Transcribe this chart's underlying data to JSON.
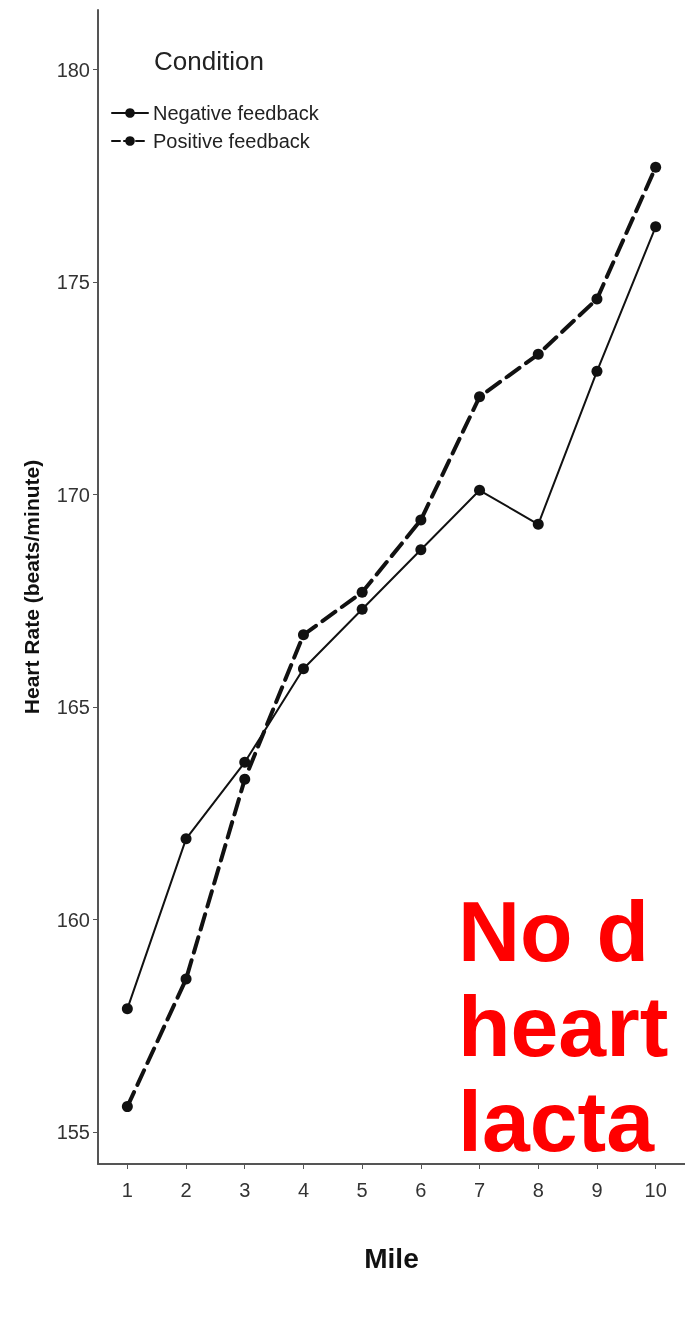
{
  "chart_data": {
    "type": "line",
    "xlabel": "Mile",
    "ylabel": "Heart Rate (beats/minute)",
    "legend_title": "Condition",
    "legend": "top left",
    "marker": "circle",
    "grid": false,
    "categories": [
      "1",
      "2",
      "3",
      "4",
      "5",
      "6",
      "7",
      "8",
      "9",
      "10"
    ],
    "series": [
      {
        "name": "Negative feedback",
        "color": "#111111",
        "line_style": "solid",
        "values": [
          157.9,
          161.9,
          163.7,
          165.9,
          167.3,
          168.7,
          170.1,
          169.3,
          172.9,
          176.3
        ]
      },
      {
        "name": "Positive feedback",
        "color": "#111111",
        "line_style": "dashed",
        "values": [
          155.6,
          158.6,
          163.3,
          166.7,
          167.7,
          169.4,
          172.3,
          173.3,
          174.6,
          177.7
        ]
      }
    ],
    "ylim": [
      154.25,
      181.4
    ],
    "yticks": [
      155,
      160,
      165,
      170,
      175,
      180
    ],
    "annotations": [
      "No d",
      "heart",
      "lacta"
    ]
  }
}
